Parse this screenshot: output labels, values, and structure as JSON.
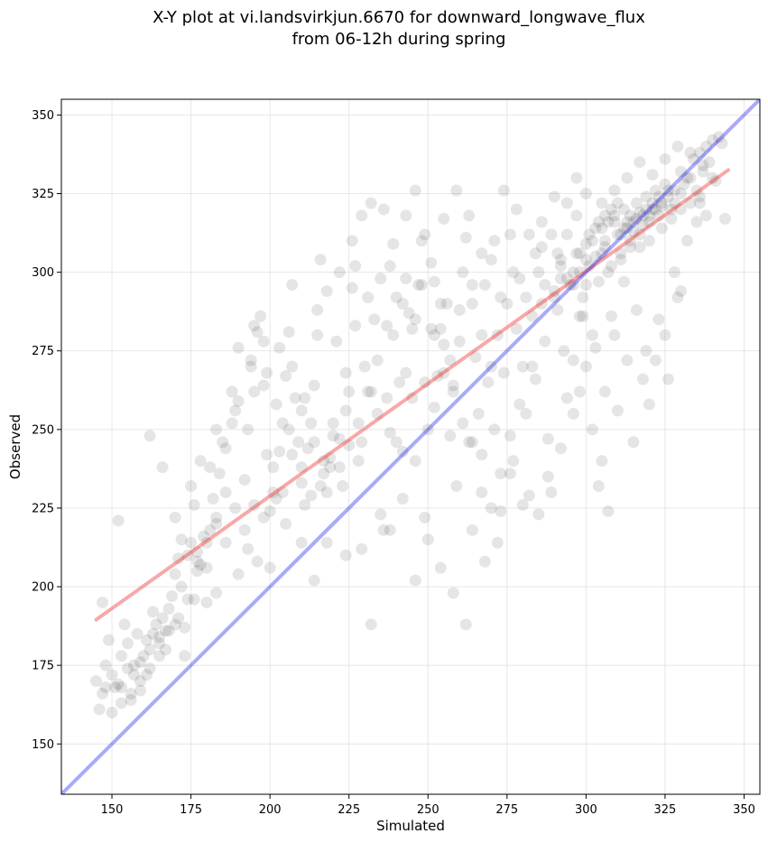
{
  "chart_data": {
    "type": "scatter",
    "title": "X-Y plot at vi.landsvirkjun.6670 for downward_longwave_flux",
    "subtitle": "from 06-12h during spring",
    "xlabel": "Simulated",
    "ylabel": "Observed",
    "xlim": [
      134,
      355
    ],
    "ylim": [
      134,
      355
    ],
    "xticks": [
      "150",
      "175",
      "200",
      "225",
      "250",
      "275",
      "300",
      "325",
      "350"
    ],
    "yticks": [
      "150",
      "175",
      "200",
      "225",
      "250",
      "275",
      "300",
      "325",
      "350"
    ],
    "grid": true,
    "legend": "none",
    "point_color": "#000000",
    "point_alpha": 0.1,
    "points": [
      [
        145,
        170
      ],
      [
        146,
        161
      ],
      [
        147,
        166
      ],
      [
        148,
        175
      ],
      [
        149,
        183
      ],
      [
        150,
        160
      ],
      [
        151,
        168
      ],
      [
        152,
        169
      ],
      [
        153,
        163
      ],
      [
        154,
        188
      ],
      [
        155,
        174
      ],
      [
        156,
        166
      ],
      [
        157,
        172
      ],
      [
        158,
        185
      ],
      [
        159,
        176
      ],
      [
        160,
        178
      ],
      [
        161,
        183
      ],
      [
        162,
        180
      ],
      [
        163,
        185
      ],
      [
        164,
        188
      ],
      [
        165,
        182
      ],
      [
        166,
        190
      ],
      [
        167,
        186
      ],
      [
        168,
        193
      ],
      [
        169,
        197
      ],
      [
        170,
        204
      ],
      [
        171,
        209
      ],
      [
        172,
        200
      ],
      [
        173,
        187
      ],
      [
        174,
        210
      ],
      [
        175,
        214
      ],
      [
        176,
        196
      ],
      [
        177,
        211
      ],
      [
        178,
        207
      ],
      [
        179,
        216
      ],
      [
        180,
        206
      ],
      [
        181,
        218
      ],
      [
        182,
        228
      ],
      [
        183,
        222
      ],
      [
        184,
        236
      ],
      [
        186,
        244
      ],
      [
        188,
        252
      ],
      [
        190,
        259
      ],
      [
        192,
        234
      ],
      [
        193,
        250
      ],
      [
        194,
        270
      ],
      [
        195,
        262
      ],
      [
        196,
        281
      ],
      [
        197,
        286
      ],
      [
        198,
        264
      ],
      [
        199,
        242
      ],
      [
        200,
        224
      ],
      [
        201,
        230
      ],
      [
        202,
        228
      ],
      [
        203,
        243
      ],
      [
        204,
        252
      ],
      [
        205,
        267
      ],
      [
        206,
        281
      ],
      [
        207,
        296
      ],
      [
        208,
        260
      ],
      [
        209,
        246
      ],
      [
        210,
        238
      ],
      [
        211,
        226
      ],
      [
        212,
        244
      ],
      [
        213,
        252
      ],
      [
        214,
        264
      ],
      [
        215,
        288
      ],
      [
        216,
        304
      ],
      [
        217,
        236
      ],
      [
        218,
        230
      ],
      [
        219,
        241
      ],
      [
        220,
        248
      ],
      [
        221,
        278
      ],
      [
        222,
        238
      ],
      [
        223,
        232
      ],
      [
        224,
        256
      ],
      [
        225,
        262
      ],
      [
        226,
        295
      ],
      [
        227,
        302
      ],
      [
        228,
        240
      ],
      [
        229,
        246
      ],
      [
        230,
        270
      ],
      [
        232,
        262
      ],
      [
        233,
        285
      ],
      [
        234,
        255
      ],
      [
        235,
        223
      ],
      [
        236,
        218
      ],
      [
        237,
        260
      ],
      [
        238,
        249
      ],
      [
        239,
        280
      ],
      [
        240,
        246
      ],
      [
        241,
        265
      ],
      [
        242,
        243
      ],
      [
        243,
        268
      ],
      [
        244,
        287
      ],
      [
        245,
        260
      ],
      [
        246,
        240
      ],
      [
        247,
        296
      ],
      [
        248,
        310
      ],
      [
        249,
        222
      ],
      [
        250,
        250
      ],
      [
        251,
        282
      ],
      [
        252,
        257
      ],
      [
        253,
        267
      ],
      [
        254,
        290
      ],
      [
        255,
        277
      ],
      [
        256,
        290
      ],
      [
        257,
        248
      ],
      [
        258,
        264
      ],
      [
        259,
        232
      ],
      [
        260,
        278
      ],
      [
        261,
        300
      ],
      [
        262,
        311
      ],
      [
        263,
        246
      ],
      [
        264,
        290
      ],
      [
        265,
        273
      ],
      [
        266,
        255
      ],
      [
        267,
        242
      ],
      [
        268,
        296
      ],
      [
        269,
        265
      ],
      [
        270,
        304
      ],
      [
        271,
        250
      ],
      [
        272,
        280
      ],
      [
        273,
        224
      ],
      [
        274,
        268
      ],
      [
        275,
        290
      ],
      [
        276,
        312
      ],
      [
        277,
        240
      ],
      [
        278,
        282
      ],
      [
        279,
        298
      ],
      [
        280,
        270
      ],
      [
        281,
        255
      ],
      [
        282,
        229
      ],
      [
        283,
        286
      ],
      [
        284,
        266
      ],
      [
        285,
        300
      ],
      [
        286,
        308
      ],
      [
        287,
        278
      ],
      [
        288,
        247
      ],
      [
        289,
        230
      ],
      [
        290,
        292
      ],
      [
        291,
        288
      ],
      [
        292,
        304
      ],
      [
        293,
        275
      ],
      [
        294,
        260
      ],
      [
        295,
        296
      ],
      [
        296,
        300
      ],
      [
        297,
        306
      ],
      [
        298,
        286
      ],
      [
        299,
        292
      ],
      [
        300,
        296
      ],
      [
        301,
        312
      ],
      [
        302,
        280
      ],
      [
        303,
        305
      ],
      [
        304,
        297
      ],
      [
        305,
        314
      ],
      [
        306,
        308
      ],
      [
        307,
        316
      ],
      [
        308,
        302
      ],
      [
        309,
        318
      ],
      [
        310,
        312
      ],
      [
        311,
        306
      ],
      [
        312,
        320
      ],
      [
        313,
        314
      ],
      [
        314,
        310
      ],
      [
        315,
        316
      ],
      [
        316,
        322
      ],
      [
        317,
        308
      ],
      [
        318,
        318
      ],
      [
        319,
        324
      ],
      [
        320,
        316
      ],
      [
        321,
        320
      ],
      [
        322,
        326
      ],
      [
        323,
        318
      ],
      [
        324,
        322
      ],
      [
        325,
        328
      ],
      [
        326,
        324
      ],
      [
        327,
        320
      ],
      [
        328,
        326
      ],
      [
        330,
        332
      ],
      [
        332,
        330
      ],
      [
        334,
        336
      ],
      [
        336,
        338
      ],
      [
        338,
        340
      ],
      [
        340,
        342
      ],
      [
        342,
        343
      ],
      [
        343,
        341
      ],
      [
        298,
        262
      ],
      [
        302,
        250
      ],
      [
        305,
        240
      ],
      [
        310,
        256
      ],
      [
        315,
        246
      ],
      [
        318,
        266
      ],
      [
        320,
        258
      ],
      [
        322,
        272
      ],
      [
        325,
        280
      ],
      [
        328,
        300
      ],
      [
        330,
        294
      ],
      [
        335,
        316
      ],
      [
        338,
        318
      ],
      [
        313,
        272
      ],
      [
        308,
        286
      ],
      [
        304,
        232
      ],
      [
        307,
        224
      ],
      [
        300,
        270
      ],
      [
        296,
        255
      ],
      [
        292,
        244
      ],
      [
        288,
        235
      ],
      [
        285,
        223
      ],
      [
        280,
        226
      ],
      [
        276,
        236
      ],
      [
        272,
        214
      ],
      [
        268,
        208
      ],
      [
        264,
        218
      ],
      [
        262,
        188
      ],
      [
        258,
        198
      ],
      [
        254,
        206
      ],
      [
        250,
        215
      ],
      [
        246,
        202
      ],
      [
        242,
        228
      ],
      [
        238,
        218
      ],
      [
        232,
        188
      ],
      [
        229,
        212
      ],
      [
        224,
        210
      ],
      [
        218,
        214
      ],
      [
        214,
        202
      ],
      [
        210,
        214
      ],
      [
        205,
        220
      ],
      [
        200,
        206
      ],
      [
        196,
        208
      ],
      [
        193,
        212
      ],
      [
        190,
        204
      ],
      [
        186,
        214
      ],
      [
        183,
        198
      ],
      [
        180,
        195
      ],
      [
        177,
        205
      ],
      [
        173,
        178
      ],
      [
        170,
        188
      ],
      [
        167,
        180
      ],
      [
        165,
        184
      ],
      [
        163,
        192
      ],
      [
        161,
        172
      ],
      [
        159,
        167
      ],
      [
        157,
        175
      ],
      [
        155,
        182
      ],
      [
        153,
        178
      ],
      [
        152,
        221
      ],
      [
        162,
        248
      ],
      [
        170,
        222
      ],
      [
        175,
        232
      ],
      [
        178,
        240
      ],
      [
        183,
        250
      ],
      [
        188,
        262
      ],
      [
        190,
        276
      ],
      [
        195,
        283
      ],
      [
        199,
        268
      ],
      [
        203,
        276
      ],
      [
        207,
        270
      ],
      [
        211,
        260
      ],
      [
        215,
        280
      ],
      [
        218,
        294
      ],
      [
        222,
        300
      ],
      [
        226,
        310
      ],
      [
        229,
        318
      ],
      [
        232,
        322
      ],
      [
        236,
        320
      ],
      [
        239,
        309
      ],
      [
        243,
        318
      ],
      [
        246,
        326
      ],
      [
        249,
        312
      ],
      [
        252,
        297
      ],
      [
        255,
        317
      ],
      [
        259,
        326
      ],
      [
        263,
        318
      ],
      [
        267,
        306
      ],
      [
        271,
        310
      ],
      [
        274,
        326
      ],
      [
        278,
        320
      ],
      [
        282,
        312
      ],
      [
        286,
        316
      ],
      [
        290,
        324
      ],
      [
        294,
        322
      ],
      [
        297,
        330
      ],
      [
        300,
        325
      ],
      [
        305,
        322
      ],
      [
        309,
        326
      ],
      [
        313,
        330
      ],
      [
        317,
        335
      ],
      [
        321,
        331
      ],
      [
        325,
        336
      ],
      [
        329,
        340
      ],
      [
        333,
        338
      ],
      [
        337,
        334
      ],
      [
        341,
        329
      ],
      [
        344,
        317
      ],
      [
        340,
        330
      ],
      [
        336,
        322
      ],
      [
        332,
        310
      ],
      [
        329,
        292
      ],
      [
        326,
        266
      ],
      [
        323,
        285
      ],
      [
        319,
        275
      ],
      [
        316,
        288
      ],
      [
        312,
        297
      ],
      [
        309,
        280
      ],
      [
        306,
        262
      ],
      [
        303,
        276
      ],
      [
        299,
        286
      ],
      [
        296,
        272
      ],
      [
        292,
        298
      ],
      [
        289,
        312
      ],
      [
        286,
        290
      ],
      [
        283,
        270
      ],
      [
        279,
        258
      ],
      [
        276,
        248
      ],
      [
        273,
        236
      ],
      [
        270,
        225
      ],
      [
        267,
        230
      ],
      [
        264,
        246
      ],
      [
        261,
        252
      ],
      [
        258,
        262
      ],
      [
        255,
        268
      ],
      [
        252,
        280
      ],
      [
        249,
        265
      ],
      [
        246,
        285
      ],
      [
        243,
        298
      ],
      [
        240,
        292
      ],
      [
        237,
        283
      ],
      [
        234,
        272
      ],
      [
        231,
        262
      ],
      [
        228,
        252
      ],
      [
        225,
        245
      ],
      [
        222,
        247
      ],
      [
        219,
        238
      ],
      [
        216,
        232
      ],
      [
        213,
        229
      ],
      [
        210,
        233
      ],
      [
        207,
        242
      ],
      [
        204,
        230
      ],
      [
        201,
        238
      ],
      [
        198,
        222
      ],
      [
        195,
        226
      ],
      [
        192,
        218
      ],
      [
        189,
        225
      ],
      [
        186,
        230
      ],
      [
        183,
        220
      ],
      [
        180,
        214
      ],
      [
        177,
        208
      ],
      [
        174,
        196
      ],
      [
        171,
        190
      ],
      [
        168,
        186
      ],
      [
        165,
        178
      ],
      [
        162,
        174
      ],
      [
        159,
        170
      ],
      [
        156,
        164
      ],
      [
        153,
        168
      ],
      [
        150,
        172
      ],
      [
        148,
        168
      ],
      [
        147,
        195
      ],
      [
        166,
        238
      ],
      [
        172,
        215
      ],
      [
        176,
        226
      ],
      [
        181,
        238
      ],
      [
        185,
        246
      ],
      [
        189,
        256
      ],
      [
        194,
        272
      ],
      [
        198,
        278
      ],
      [
        202,
        258
      ],
      [
        206,
        250
      ],
      [
        210,
        256
      ],
      [
        214,
        246
      ],
      [
        217,
        240
      ],
      [
        220,
        252
      ],
      [
        224,
        268
      ],
      [
        227,
        283
      ],
      [
        231,
        292
      ],
      [
        235,
        298
      ],
      [
        238,
        302
      ],
      [
        242,
        290
      ],
      [
        245,
        282
      ],
      [
        248,
        296
      ],
      [
        251,
        303
      ],
      [
        254,
        282
      ],
      [
        257,
        272
      ],
      [
        260,
        288
      ],
      [
        264,
        296
      ],
      [
        267,
        280
      ],
      [
        270,
        270
      ],
      [
        273,
        292
      ],
      [
        277,
        300
      ],
      [
        281,
        292
      ],
      [
        284,
        306
      ],
      [
        287,
        296
      ],
      [
        291,
        306
      ],
      [
        294,
        312
      ],
      [
        297,
        318
      ],
      [
        300,
        309
      ],
      [
        303,
        314
      ],
      [
        306,
        310
      ],
      [
        309,
        316
      ],
      [
        311,
        312
      ],
      [
        312,
        314
      ],
      [
        313,
        316
      ],
      [
        314,
        318
      ],
      [
        315,
        313
      ],
      [
        316,
        317
      ],
      [
        317,
        319
      ],
      [
        318,
        315
      ],
      [
        319,
        320
      ],
      [
        320,
        318
      ],
      [
        321,
        322
      ],
      [
        322,
        320
      ],
      [
        323,
        324
      ],
      [
        324,
        321
      ],
      [
        326,
        326
      ],
      [
        328,
        322
      ],
      [
        330,
        325
      ],
      [
        331,
        328
      ],
      [
        333,
        330
      ],
      [
        335,
        326
      ],
      [
        337,
        332
      ],
      [
        339,
        335
      ],
      [
        310,
        322
      ],
      [
        308,
        320
      ],
      [
        306,
        318
      ],
      [
        304,
        316
      ],
      [
        302,
        310
      ],
      [
        300,
        304
      ],
      [
        298,
        300
      ],
      [
        296,
        296
      ],
      [
        294,
        298
      ],
      [
        292,
        302
      ],
      [
        290,
        294
      ],
      [
        298,
        306
      ],
      [
        301,
        302
      ],
      [
        305,
        306
      ],
      [
        307,
        300
      ],
      [
        311,
        304
      ],
      [
        314,
        308
      ],
      [
        317,
        312
      ],
      [
        320,
        310
      ],
      [
        324,
        314
      ],
      [
        327,
        317
      ],
      [
        330,
        320
      ],
      [
        333,
        322
      ],
      [
        336,
        324
      ]
    ],
    "fit_line": {
      "color": "#ee3030",
      "alpha": 0.42,
      "x": [
        145,
        345
      ],
      "y": [
        189.5,
        332.5
      ]
    },
    "identity_line": {
      "color": "#2020ee",
      "alpha": 0.38,
      "x": [
        134,
        355
      ],
      "y": [
        134,
        355
      ]
    }
  }
}
